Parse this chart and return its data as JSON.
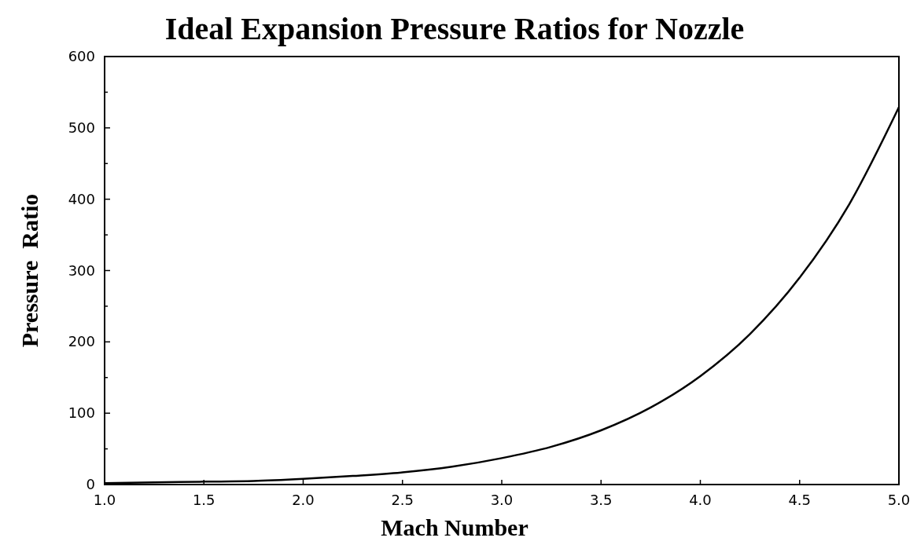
{
  "chart_data": {
    "type": "line",
    "title": "Ideal Expansion Pressure Ratios for Nozzle",
    "xlabel": "Mach Number",
    "ylabel": "Pressure  Ratio",
    "x": [
      1,
      1.25,
      1.5,
      1.75,
      2,
      2.25,
      2.5,
      2.75,
      3,
      3.25,
      3.5,
      3.75,
      4,
      4.25,
      4.5,
      4.75,
      5
    ],
    "series": [
      {
        "color": "#000000",
        "values": [
          2,
          3,
          4,
          5,
          8,
          12,
          17,
          25,
          37,
          53,
          76,
          108,
          152,
          211,
          290,
          393,
          529
        ]
      }
    ],
    "xlim": [
      1,
      5
    ],
    "xticks": [
      {
        "value": 1,
        "label": "1.0"
      },
      {
        "value": 1.5,
        "label": "1.5"
      },
      {
        "value": 2,
        "label": "2.0"
      },
      {
        "value": 2.5,
        "label": "2.5"
      },
      {
        "value": 3,
        "label": "3.0"
      },
      {
        "value": 3.5,
        "label": "3.5"
      },
      {
        "value": 4,
        "label": "4.0"
      },
      {
        "value": 4.5,
        "label": "4.5"
      },
      {
        "value": 5,
        "label": "5.0"
      }
    ],
    "ylim": [
      0,
      600
    ],
    "yticks": [
      0,
      {
        "value": 50,
        "label": null
      },
      100,
      {
        "value": 150,
        "label": null
      },
      200,
      {
        "value": 250,
        "label": null
      },
      300,
      {
        "value": 350,
        "label": null
      },
      400,
      {
        "value": 450,
        "label": null
      },
      500,
      {
        "value": 550,
        "label": null
      },
      600
    ],
    "grid": false,
    "marker": "none",
    "line_style": "solid"
  }
}
